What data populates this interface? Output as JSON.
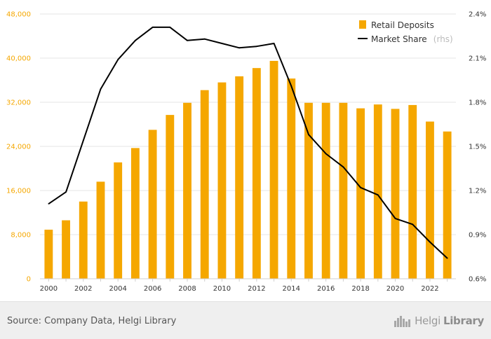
{
  "chart_data": {
    "type": "bar+line",
    "title": "",
    "categories": [
      "2000",
      "2001",
      "2002",
      "2003",
      "2004",
      "2005",
      "2006",
      "2007",
      "2008",
      "2009",
      "2010",
      "2011",
      "2012",
      "2013",
      "2014",
      "2015",
      "2016",
      "2017",
      "2018",
      "2019",
      "2020",
      "2021",
      "2022",
      "2023"
    ],
    "x_tick_labels": [
      "2000",
      "2002",
      "2004",
      "2006",
      "2008",
      "2010",
      "2012",
      "2014",
      "2016",
      "2018",
      "2020",
      "2022"
    ],
    "series": [
      {
        "name": "Retail Deposits",
        "type": "bar",
        "axis": "left",
        "color": "#f5a700",
        "values": [
          8900,
          10600,
          14000,
          17600,
          21100,
          23700,
          27000,
          29700,
          31900,
          34200,
          35600,
          36700,
          38200,
          39500,
          36300,
          31900,
          31900,
          31900,
          30900,
          31600,
          30800,
          31500,
          28500,
          26700
        ]
      },
      {
        "name": "Market Share",
        "note": "(rhs)",
        "type": "line",
        "axis": "right",
        "color": "#000000",
        "values": [
          1.11,
          1.19,
          1.54,
          1.89,
          2.09,
          2.22,
          2.31,
          2.31,
          2.22,
          2.23,
          2.2,
          2.17,
          2.18,
          2.2,
          1.91,
          1.58,
          1.45,
          1.36,
          1.22,
          1.17,
          1.01,
          0.97,
          0.85,
          0.74
        ]
      }
    ],
    "y_left": {
      "min": 0,
      "max": 48000,
      "ticks": [
        0,
        8000,
        16000,
        24000,
        32000,
        40000,
        48000
      ],
      "tick_labels": [
        "0",
        "8,000",
        "16,000",
        "24,000",
        "32,000",
        "40,000",
        "48,000"
      ],
      "color": "#f5a700"
    },
    "y_right": {
      "min": 0.6,
      "max": 2.4,
      "ticks": [
        0.6,
        0.9,
        1.2,
        1.5,
        1.8,
        2.1,
        2.4
      ],
      "tick_labels": [
        "0.6%",
        "0.9%",
        "1.2%",
        "1.5%",
        "1.8%",
        "2.1%",
        "2.4%"
      ],
      "color": "#333333"
    },
    "grid": true,
    "legend_position": "top-right"
  },
  "footer": {
    "source": "Source: Company Data, Helgi Library",
    "brand_name": "Helgi",
    "brand_suffix": "Library"
  }
}
